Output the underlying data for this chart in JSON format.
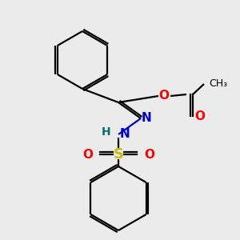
{
  "bg_color": "#ebebeb",
  "atom_colors": {
    "C": "#000000",
    "N": "#0000cc",
    "O": "#ff0000",
    "S": "#ccbb00",
    "H": "#007070"
  },
  "figsize": [
    3.0,
    3.0
  ],
  "dpi": 100
}
